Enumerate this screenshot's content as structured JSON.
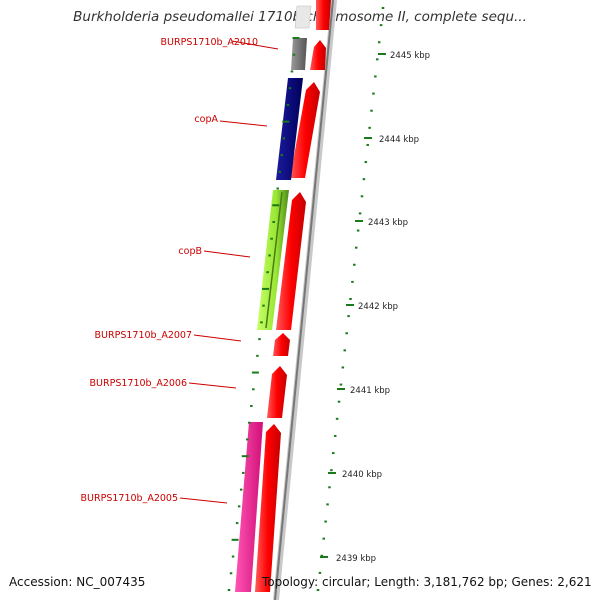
{
  "title": "Burkholderia pseudomallei 1710b chromosome II, complete sequ...",
  "footer": {
    "accession": "Accession: NC_007435",
    "topology": "Topology: circular; Length: 3,181,762 bp; Genes: 2,621"
  },
  "colors": {
    "label": "#cc0000",
    "backbone": "#9a9a9a",
    "tick": "#1a7a1a",
    "forward_strand": "#ff0000",
    "gene_gray": "#6e6e6e",
    "gene_navy": "#00007f",
    "gene_lime": "#99e633",
    "gene_pink": "#ff1493"
  },
  "kbp_labels": [
    "2445 kbp",
    "2444 kbp",
    "2443 kbp",
    "2442 kbp",
    "2441 kbp",
    "2440 kbp",
    "2439 kbp"
  ],
  "gene_labels": [
    "BURPS1710b_A2010",
    "copA",
    "copB",
    "BURPS1710b_A2007",
    "BURPS1710b_A2006",
    "BURPS1710b_A2005"
  ]
}
